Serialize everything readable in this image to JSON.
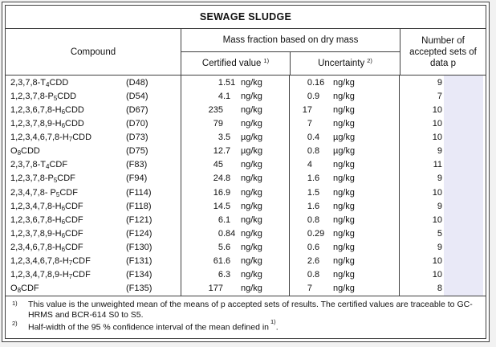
{
  "title": "SEWAGE SLUDGE",
  "header": {
    "compound": "Compound",
    "mass_fraction": "Mass fraction based on dry mass",
    "certified_value": "Certified value",
    "certified_note_ref": "1)",
    "uncertainty": "Uncertainty",
    "uncertainty_note_ref": "2)",
    "sets": "Number of accepted sets of data p"
  },
  "rows": [
    {
      "compound": "2,3,7,8-T₄CDD",
      "code": "(D48)",
      "value": "1.51",
      "value_unit": "ng/kg",
      "uncertainty": "0.16",
      "uncertainty_unit": "ng/kg",
      "sets": "9"
    },
    {
      "compound": "1,2,3,7,8-P₅CDD",
      "code": "(D54)",
      "value": "4.1",
      "value_unit": "ng/kg",
      "uncertainty": "0.9",
      "uncertainty_unit": "ng/kg",
      "sets": "7"
    },
    {
      "compound": "1,2,3,6,7,8-H₆CDD",
      "code": "(D67)",
      "value": "235",
      "value_unit": "ng/kg",
      "uncertainty": "17",
      "uncertainty_unit": "ng/kg",
      "sets": "10"
    },
    {
      "compound": "1,2,3,7,8,9-H₆CDD",
      "code": "(D70)",
      "value": "79",
      "value_unit": "ng/kg",
      "uncertainty": "7",
      "uncertainty_unit": "ng/kg",
      "sets": "10"
    },
    {
      "compound": "1,2,3,4,6,7,8-H₇CDD",
      "code": "(D73)",
      "value": "3.5",
      "value_unit": "µg/kg",
      "uncertainty": "0.4",
      "uncertainty_unit": "µg/kg",
      "sets": "10"
    },
    {
      "compound": "O₈CDD",
      "code": "(D75)",
      "value": "12.7",
      "value_unit": "µg/kg",
      "uncertainty": "0.8",
      "uncertainty_unit": "µg/kg",
      "sets": "9"
    },
    {
      "compound": "2,3,7,8-T₄CDF",
      "code": "(F83)",
      "value": "45",
      "value_unit": "ng/kg",
      "uncertainty": "4",
      "uncertainty_unit": "ng/kg",
      "sets": "11"
    },
    {
      "compound": "1,2,3,7,8-P₅CDF",
      "code": "(F94)",
      "value": "24.8",
      "value_unit": "ng/kg",
      "uncertainty": "1.6",
      "uncertainty_unit": "ng/kg",
      "sets": "9"
    },
    {
      "compound": "2,3,4,7,8- P₅CDF",
      "code": "(F114)",
      "value": "16.9",
      "value_unit": "ng/kg",
      "uncertainty": "1.5",
      "uncertainty_unit": "ng/kg",
      "sets": "10"
    },
    {
      "compound": "1,2,3,4,7,8-H₆CDF",
      "code": "(F118)",
      "value": "14.5",
      "value_unit": "ng/kg",
      "uncertainty": "1.6",
      "uncertainty_unit": "ng/kg",
      "sets": "9"
    },
    {
      "compound": "1,2,3,6,7,8-H₆CDF",
      "code": "(F121)",
      "value": "6.1",
      "value_unit": "ng/kg",
      "uncertainty": "0.8",
      "uncertainty_unit": "ng/kg",
      "sets": "10"
    },
    {
      "compound": "1,2,3,7,8,9-H₆CDF",
      "code": "(F124)",
      "value": "0.84",
      "value_unit": "ng/kg",
      "uncertainty": "0.29",
      "uncertainty_unit": "ng/kg",
      "sets": "5"
    },
    {
      "compound": "2,3,4,6,7,8-H₆CDF",
      "code": "(F130)",
      "value": "5.6",
      "value_unit": "ng/kg",
      "uncertainty": "0.6",
      "uncertainty_unit": "ng/kg",
      "sets": "9"
    },
    {
      "compound": "1,2,3,4,6,7,8-H₇CDF",
      "code": "(F131)",
      "value": "61.6",
      "value_unit": "ng/kg",
      "uncertainty": "2.6",
      "uncertainty_unit": "ng/kg",
      "sets": "10"
    },
    {
      "compound": "1,2,3,4,7,8,9-H₇CDF",
      "code": "(F134)",
      "value": "6.3",
      "value_unit": "ng/kg",
      "uncertainty": "0.8",
      "uncertainty_unit": "ng/kg",
      "sets": "10"
    },
    {
      "compound": "O₈CDF",
      "code": "(F135)",
      "value": "177",
      "value_unit": "ng/kg",
      "uncertainty": "7",
      "uncertainty_unit": "ng/kg",
      "sets": "8"
    }
  ],
  "footnotes": [
    {
      "ref": "1)",
      "text": "This value is the unweighted mean of the means of p accepted sets of results. The certified values are traceable to GC-HRMS and BCR-614 S0 to S5.",
      "ref2": "",
      "suffix": ""
    },
    {
      "ref": "2)",
      "text": "Half-width of the 95 % confidence interval of the mean defined in",
      "ref2": "1)",
      "suffix": "."
    }
  ],
  "colors": {
    "highlight": "#e9e9f7",
    "border": "#3f3f3f",
    "page_background": "#f2f2f2"
  }
}
